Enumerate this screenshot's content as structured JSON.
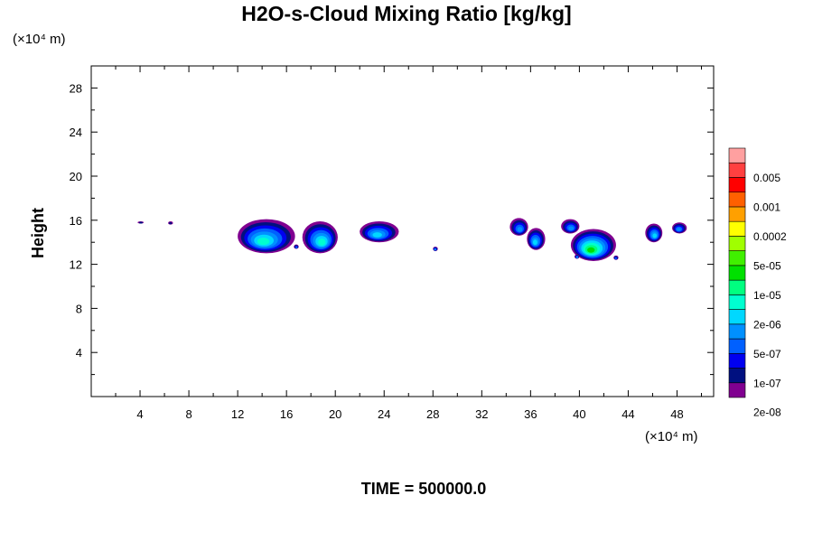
{
  "title": "H2O-s-Cloud Mixing Ratio [kg/kg]",
  "time_label": "TIME = 500000.0",
  "chart_data": {
    "type": "heatmap",
    "title": "H2O-s-Cloud Mixing Ratio [kg/kg]",
    "ylabel": "Height",
    "xlabel": "",
    "x_unit": "(×10⁴ m)",
    "y_unit": "(×10⁴ m)",
    "xlim": [
      0,
      51
    ],
    "ylim": [
      0,
      30
    ],
    "x_ticks": [
      4,
      8,
      12,
      16,
      20,
      24,
      28,
      32,
      36,
      40,
      44,
      48
    ],
    "y_ticks": [
      4,
      8,
      12,
      16,
      20,
      24,
      28
    ],
    "colorbar": {
      "labels": [
        "0.005",
        "0.001",
        "0.0002",
        "5e-05",
        "1e-05",
        "2e-06",
        "5e-07",
        "1e-07",
        "2e-08"
      ],
      "colors": [
        "#800090",
        "#001080",
        "#0000f0",
        "#0060ff",
        "#0090ff",
        "#00d8ff",
        "#00ffd0",
        "#00ff80",
        "#00e000",
        "#40f000",
        "#a0ff00",
        "#ffff00",
        "#ffa000",
        "#ff6000",
        "#ff0000",
        "#ff4040",
        "#ffa0a0"
      ]
    },
    "cloud_patches": [
      {
        "x": [
          12.0,
          16.7
        ],
        "y": [
          13.0,
          16.1
        ],
        "max_level": 6
      },
      {
        "x": [
          17.3,
          20.2
        ],
        "y": [
          13.0,
          15.9
        ],
        "max_level": 6
      },
      {
        "x": [
          22.0,
          25.2
        ],
        "y": [
          14.0,
          15.9
        ],
        "max_level": 5
      },
      {
        "x": [
          34.3,
          35.8
        ],
        "y": [
          14.6,
          16.2
        ],
        "max_level": 4
      },
      {
        "x": [
          35.7,
          37.2
        ],
        "y": [
          13.3,
          15.3
        ],
        "max_level": 5
      },
      {
        "x": [
          38.5,
          40.0
        ],
        "y": [
          14.8,
          16.1
        ],
        "max_level": 4
      },
      {
        "x": [
          39.3,
          43.0
        ],
        "y": [
          12.3,
          15.2
        ],
        "max_level": 8
      },
      {
        "x": [
          45.4,
          46.8
        ],
        "y": [
          14.0,
          15.7
        ],
        "max_level": 5
      },
      {
        "x": [
          47.6,
          48.8
        ],
        "y": [
          14.8,
          15.8
        ],
        "max_level": 4
      },
      {
        "x": [
          3.8,
          4.3
        ],
        "y": [
          15.7,
          15.9
        ],
        "max_level": 1
      },
      {
        "x": [
          6.3,
          6.7
        ],
        "y": [
          15.6,
          15.9
        ],
        "max_level": 1
      },
      {
        "x": [
          16.6,
          17.0
        ],
        "y": [
          13.4,
          13.8
        ],
        "max_level": 3
      },
      {
        "x": [
          28.0,
          28.4
        ],
        "y": [
          13.2,
          13.6
        ],
        "max_level": 4
      },
      {
        "x": [
          39.6,
          40.0
        ],
        "y": [
          12.5,
          12.9
        ],
        "max_level": 4
      },
      {
        "x": [
          42.8,
          43.2
        ],
        "y": [
          12.4,
          12.8
        ],
        "max_level": 3
      }
    ]
  }
}
